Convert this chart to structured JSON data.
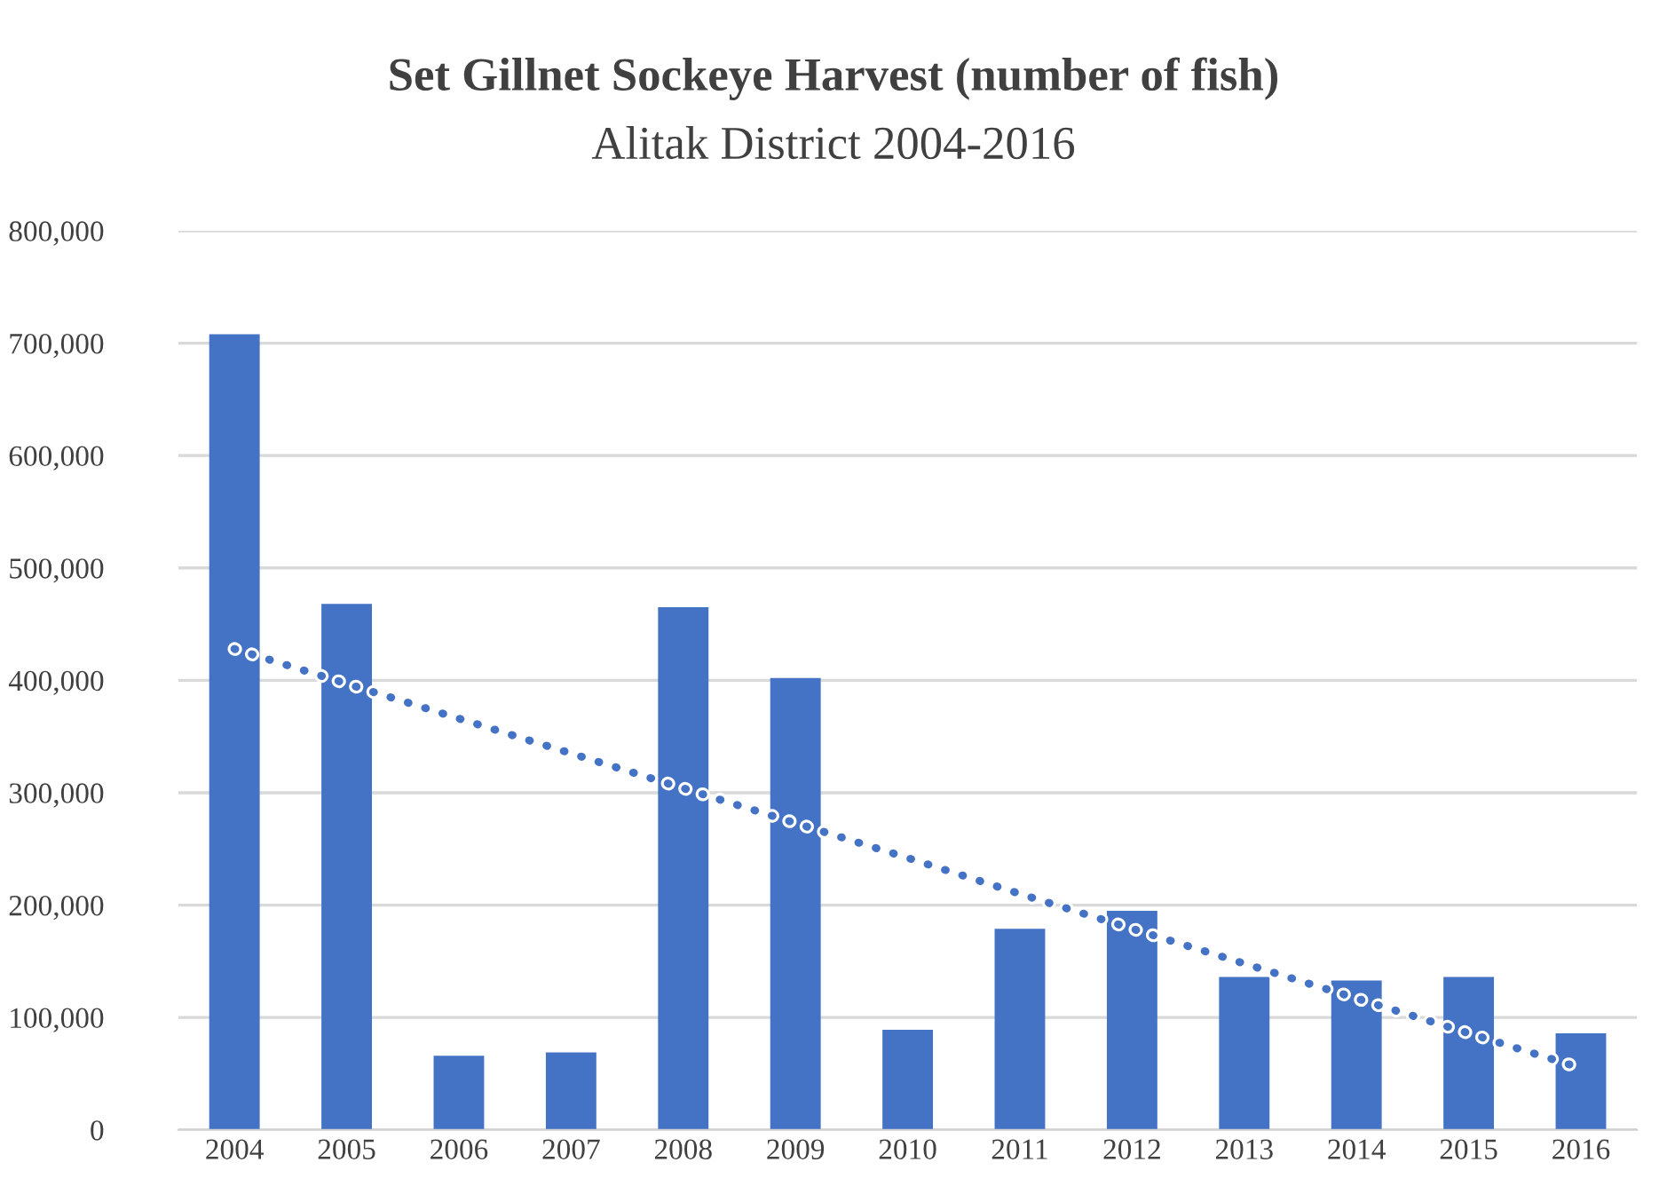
{
  "chart_data": {
    "type": "bar",
    "title": "Set Gillnet Sockeye Harvest (number of fish)",
    "subtitle": "Alitak District 2004-2016",
    "categories": [
      "2004",
      "2005",
      "2006",
      "2007",
      "2008",
      "2009",
      "2010",
      "2011",
      "2012",
      "2013",
      "2014",
      "2015",
      "2016"
    ],
    "series": [
      {
        "color": "#4472c4",
        "values": [
          708000,
          468000,
          66000,
          69000,
          465000,
          402000,
          89000,
          179000,
          195000,
          136000,
          133000,
          136000,
          86000
        ]
      },
      {
        "type": "line",
        "color": "#4472c4",
        "line_style": "dotted",
        "values": [
          428000,
          397000,
          366000,
          335000,
          304000,
          273000,
          242000,
          210000,
          179000,
          148000,
          117000,
          86000,
          55000
        ]
      }
    ],
    "ylim": [
      0,
      800000
    ],
    "yticks": [
      {
        "value": 0,
        "label": "0"
      },
      {
        "value": 100000,
        "label": "100,000"
      },
      {
        "value": 200000,
        "label": "200,000"
      },
      {
        "value": 300000,
        "label": "300,000"
      },
      {
        "value": 400000,
        "label": "400,000"
      },
      {
        "value": 500000,
        "label": "500,000"
      },
      {
        "value": 600000,
        "label": "600,000"
      },
      {
        "value": 700000,
        "label": "700,000"
      },
      {
        "value": 800000,
        "label": "800,000"
      }
    ],
    "grid": "y",
    "legend": false
  }
}
